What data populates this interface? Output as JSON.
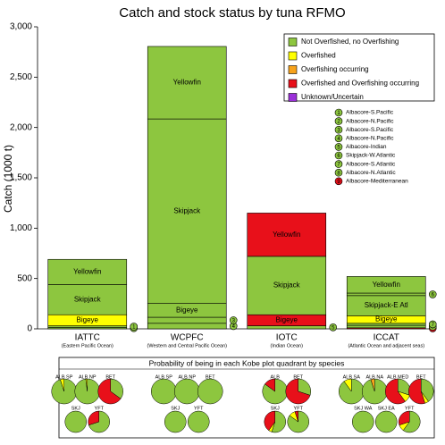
{
  "chart_data": {
    "type": "stacked-bar",
    "title": "Catch and stock status by tuna RFMO",
    "y_label": "Catch (1000 t)",
    "ylim": [
      0,
      3000
    ],
    "yticks": [
      0,
      500,
      {
        "value": 1000,
        "label": "1,000"
      },
      {
        "value": 1500,
        "label": "1,500"
      },
      {
        "value": 2000,
        "label": "2,000"
      },
      {
        "value": 2500,
        "label": "2,500"
      },
      {
        "value": 3000,
        "label": "3,000"
      }
    ],
    "legend": [
      {
        "label": "Not Overfished, no Overfishing",
        "color": "#8dc63f"
      },
      {
        "label": "Overfished",
        "color": "#ffff00"
      },
      {
        "label": "Overfishing occurring",
        "color": "#f7a21b"
      },
      {
        "label": "Overfished and Overfishing occurring",
        "color": "#e8101a"
      },
      {
        "label": "Unknown/Uncertain",
        "color": "#9b30d9"
      }
    ],
    "stock_markers": [
      {
        "label": "1",
        "name": "Albacore-S.Pacific",
        "status": 0
      },
      {
        "label": "2",
        "name": "Albacore-N.Pacific",
        "status": 0
      },
      {
        "label": "3",
        "name": "Albacore-S.Pacific",
        "status": 0
      },
      {
        "label": "4",
        "name": "Albacore-N.Pacific",
        "status": 0
      },
      {
        "label": "5",
        "name": "Albacore-Indian",
        "status": 0
      },
      {
        "label": "6",
        "name": "Skipjack-W.Atlantic",
        "status": 0
      },
      {
        "label": "7",
        "name": "Albacore-S.Atlantic",
        "status": 0
      },
      {
        "label": "8",
        "name": "Albacore-N.Atlantic",
        "status": 0
      },
      {
        "label": "9",
        "name": "Albacore-Mediterranean",
        "status": 3
      }
    ],
    "bars": [
      {
        "category": "IATTC",
        "sublabel": "(Eastern Pacific Ocean)",
        "segments": [
          {
            "value": 15,
            "status": 0,
            "marker": 1
          },
          {
            "value": 15,
            "status": 0,
            "marker": 0
          },
          {
            "name": "Bigeye",
            "value": 110,
            "status": 1
          },
          {
            "name": "Skipjack",
            "value": 300,
            "status": 0
          },
          {
            "name": "Yellowfin",
            "value": 250,
            "status": 0
          }
        ]
      },
      {
        "category": "WCPFC",
        "sublabel": "(Western and Central Pacific Ocean)",
        "segments": [
          {
            "value": 55,
            "status": 0,
            "marker": 3
          },
          {
            "value": 60,
            "status": 0,
            "marker": 2
          },
          {
            "name": "Bigeye",
            "value": 140,
            "status": 0
          },
          {
            "name": "Skipjack",
            "value": 1830,
            "status": 0
          },
          {
            "name": "Yellowfin",
            "value": 720,
            "status": 0
          }
        ]
      },
      {
        "category": "IOTC",
        "sublabel": "(Indian Ocean)",
        "segments": [
          {
            "value": 30,
            "status": 0,
            "marker": 4
          },
          {
            "name": "Bigeye",
            "value": 110,
            "status": 3
          },
          {
            "name": "Skipjack",
            "value": 580,
            "status": 0
          },
          {
            "name": "Yellowfin",
            "value": 430,
            "status": 3
          }
        ]
      },
      {
        "category": "ICCAT",
        "sublabel": "(Atlantic Ocean and adjacent seas)",
        "segments": [
          {
            "value": 10,
            "status": 3,
            "marker": 8
          },
          {
            "value": 25,
            "status": 0,
            "marker": 7
          },
          {
            "value": 20,
            "status": 0,
            "marker": 6
          },
          {
            "name": "Bigeye",
            "value": 75,
            "status": 1
          },
          {
            "name": "Skipjack-E Atl",
            "value": 200,
            "status": 0
          },
          {
            "value": 25,
            "status": 0,
            "marker": 5
          },
          {
            "name": "Yellowfin",
            "value": 165,
            "status": 0
          }
        ]
      }
    ],
    "pies_title": "Probability of being in each Kobe plot quadrant by species",
    "pie_groups": [
      {
        "rows": [
          [
            {
              "label": "ALB SP",
              "slices": [
                95,
                5,
                0,
                0
              ]
            },
            {
              "label": "ALB NP",
              "slices": [
                98,
                2,
                0,
                0
              ]
            },
            {
              "label": "BET",
              "slices": [
                35,
                0,
                0,
                65
              ]
            }
          ],
          [
            {
              "label": "SKJ",
              "slices": [
                100,
                0,
                0,
                0
              ]
            },
            {
              "label": "YFT",
              "slices": [
                70,
                0,
                0,
                30
              ]
            }
          ]
        ]
      },
      {
        "rows": [
          [
            {
              "label": "ALB SP",
              "slices": [
                100,
                0,
                0,
                0
              ]
            },
            {
              "label": "ALB NP",
              "slices": [
                100,
                0,
                0,
                0
              ]
            },
            {
              "label": "BET",
              "slices": [
                100,
                0,
                0,
                0
              ]
            }
          ],
          [
            {
              "label": "SKJ",
              "slices": [
                100,
                0,
                0,
                0
              ]
            },
            {
              "label": "YFT",
              "slices": [
                100,
                0,
                0,
                0
              ]
            }
          ]
        ]
      },
      {
        "rows": [
          [
            {
              "label": "ALB",
              "slices": [
                85,
                0,
                0,
                15
              ]
            },
            {
              "label": "BET",
              "slices": [
                30,
                0,
                0,
                70
              ]
            }
          ],
          [
            {
              "label": "SKJ",
              "slices": [
                55,
                5,
                0,
                40
              ]
            },
            {
              "label": "YFT",
              "slices": [
                85,
                10,
                0,
                5
              ]
            }
          ]
        ]
      },
      {
        "rows": [
          [
            {
              "label": "ALB SA",
              "slices": [
                90,
                10,
                0,
                0
              ]
            },
            {
              "label": "ALB NA",
              "slices": [
                95,
                0,
                5,
                0
              ]
            },
            {
              "label": "ALB MED",
              "slices": [
                30,
                10,
                0,
                60
              ]
            },
            {
              "label": "BET",
              "slices": [
                40,
                5,
                0,
                55
              ]
            }
          ],
          [
            {
              "label": "SKJ WA",
              "slices": [
                100,
                0,
                0,
                0
              ]
            },
            {
              "label": "SKJ EA",
              "slices": [
                100,
                0,
                0,
                0
              ]
            },
            {
              "label": "YFT",
              "slices": [
                60,
                10,
                0,
                30
              ]
            }
          ]
        ]
      }
    ]
  }
}
